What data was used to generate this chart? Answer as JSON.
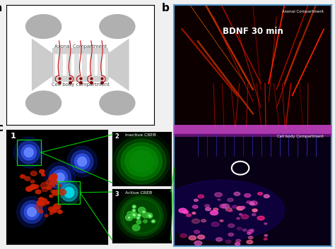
{
  "panel_a_label": "a",
  "panel_b_label": "b",
  "panel_c_label": "c",
  "fig_bg": "#f0f0f0",
  "axonal_text": "Axonal Compartment",
  "cell_body_text": "Cell body compartment",
  "bdnf_text": "BDNF 30 min",
  "axonal_compartment_text": "Axonal Compartment",
  "cell_body_compartment_text": "Cell body Compartment",
  "label1": "1",
  "label2": "2",
  "label3": "3",
  "inactive_creb": "Inactive CREB",
  "active_creb": "Active CREB"
}
